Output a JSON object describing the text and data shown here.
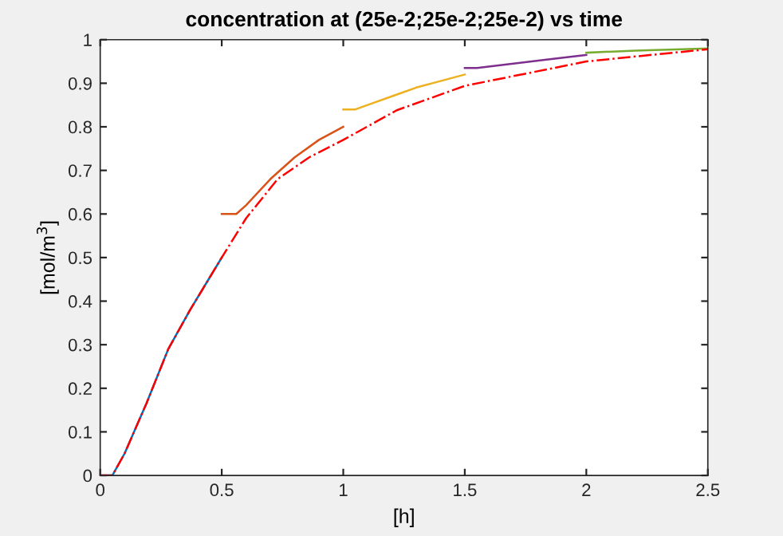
{
  "chart_data": {
    "type": "line",
    "title": "concentration at (25e-2;25e-2;25e-2) vs time",
    "xlabel": "[h]",
    "ylabel": "[mol/m$^{3}$]",
    "series": [
      {
        "color": "#0072bd",
        "x": [
          0,
          0.05,
          0.1,
          0.19,
          0.28,
          0.37,
          0.5
        ],
        "values": [
          0,
          0,
          0.05,
          0.165,
          0.29,
          0.38,
          0.5
        ]
      },
      {
        "color": "#d95319",
        "x": [
          0.5,
          0.56,
          0.6,
          0.7,
          0.8,
          0.9,
          1.0
        ],
        "values": [
          0.6,
          0.6,
          0.62,
          0.68,
          0.73,
          0.77,
          0.8
        ]
      },
      {
        "color": "#edb120",
        "x": [
          1.0,
          1.05,
          1.1,
          1.2,
          1.3,
          1.4,
          1.5
        ],
        "values": [
          0.84,
          0.84,
          0.85,
          0.87,
          0.89,
          0.905,
          0.92
        ]
      },
      {
        "color": "#7e2f8e",
        "x": [
          1.5,
          1.55,
          1.7,
          1.85,
          2.0
        ],
        "values": [
          0.935,
          0.935,
          0.945,
          0.955,
          0.965
        ]
      },
      {
        "color": "#77ac30",
        "x": [
          2.0,
          2.2,
          2.5
        ],
        "values": [
          0.97,
          0.975,
          0.98
        ]
      },
      {
        "color": "#ff0000",
        "line_style": "dashdot",
        "x": [
          0,
          0.05,
          0.1,
          0.19,
          0.28,
          0.37,
          0.5,
          0.6,
          0.73,
          0.86,
          1.0,
          1.22,
          1.5,
          2.0,
          2.5
        ],
        "values": [
          0,
          0,
          0.05,
          0.165,
          0.29,
          0.38,
          0.5,
          0.59,
          0.68,
          0.73,
          0.77,
          0.838,
          0.894,
          0.95,
          0.978
        ]
      }
    ],
    "xlim": [
      0,
      2.5
    ],
    "xticks": [
      0,
      0.5,
      1,
      1.5,
      2,
      2.5
    ],
    "ylim": [
      0,
      1
    ],
    "yticks": [
      0,
      0.1,
      0.2,
      0.3,
      0.4,
      0.5,
      0.6,
      0.7,
      0.8,
      0.9,
      1
    ],
    "grid": false,
    "legend": false
  }
}
